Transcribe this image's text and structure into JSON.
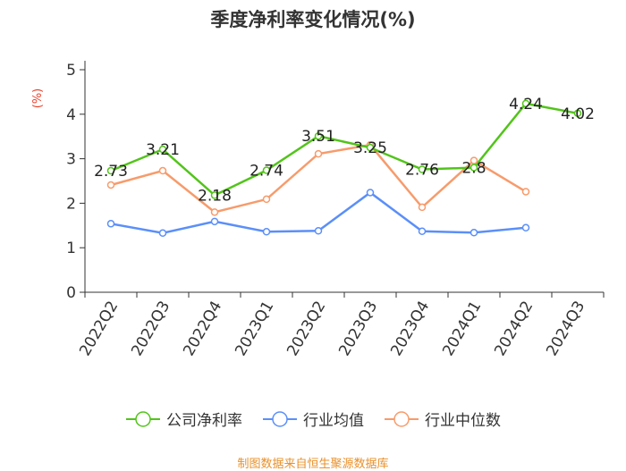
{
  "chart_data": {
    "type": "line",
    "title": "季度净利率变化情况(%)",
    "ylabel": "(%)",
    "xlabel": "",
    "ylim": [
      0,
      5
    ],
    "yticks": [
      0,
      1,
      2,
      3,
      4,
      5
    ],
    "grid": false,
    "legend_position": "bottom",
    "categories": [
      "2022Q2",
      "2022Q3",
      "2022Q4",
      "2023Q1",
      "2023Q2",
      "2023Q3",
      "2023Q4",
      "2024Q1",
      "2024Q2",
      "2024Q3"
    ],
    "series": [
      {
        "name": "公司净利率",
        "color": "#52c41a",
        "values": [
          2.73,
          3.21,
          2.18,
          2.74,
          3.51,
          3.25,
          2.76,
          2.8,
          4.24,
          4.02
        ],
        "data_labels": [
          "2.73",
          "3.21",
          "2.18",
          "2.74",
          "3.51",
          "3.25",
          "2.76",
          "2.8",
          "4.24",
          "4.02"
        ]
      },
      {
        "name": "行业均值",
        "color": "#5b8ff9",
        "values": [
          1.54,
          1.33,
          1.59,
          1.36,
          1.38,
          2.24,
          1.37,
          1.34,
          1.45,
          null
        ]
      },
      {
        "name": "行业中位数",
        "color": "#f79b6b",
        "values": [
          2.41,
          2.73,
          1.8,
          2.09,
          3.11,
          3.31,
          1.91,
          2.96,
          2.26,
          null
        ]
      }
    ]
  },
  "source_text": "制图数据来自恒生聚源数据库"
}
